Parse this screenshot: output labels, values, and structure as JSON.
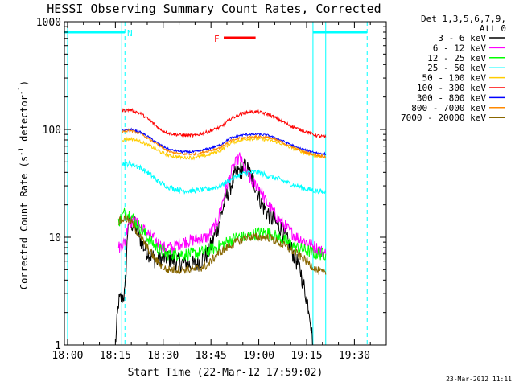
{
  "chart_data": {
    "type": "line",
    "title": "HESSI Observing Summary Count Rates, Corrected",
    "xlabel": "Start Time (22-Mar-12 17:59:02)",
    "ylabel": "Corrected Count Rate (s",
    "ylabel_sup1": "-1",
    "ylabel_mid": " detector",
    "ylabel_sup2": "-1",
    "ylabel_end": ")",
    "y_scale": "log",
    "ylim": [
      1,
      1000
    ],
    "xlim": [
      "17:59:00",
      "19:40:00"
    ],
    "x_ticks": [
      "18:00",
      "18:15",
      "18:30",
      "18:45",
      "19:00",
      "19:15",
      "19:30"
    ],
    "y_ticks": [
      "1",
      "10",
      "100",
      "1000"
    ],
    "legend": {
      "placement": "right",
      "header": [
        "Det 1,3,5,6,7,9,",
        "Att 0"
      ]
    },
    "annotations": {
      "night_label": "N",
      "flare_label": "F",
      "flare_span": [
        "18:49",
        "18:59"
      ],
      "timestamp": "23-Mar-2012 11:11"
    },
    "night_bars": [
      {
        "start": "17:59:00",
        "end": "18:18:00",
        "y": 800
      },
      {
        "start": "19:17:00",
        "end": "19:34:00",
        "y": 800
      }
    ],
    "night_lines": [
      {
        "time": "18:18:00",
        "style": "dashed"
      },
      {
        "time": "18:17:00",
        "style": "solid"
      },
      {
        "time": "19:17:00",
        "style": "solid"
      },
      {
        "time": "19:21:00",
        "style": "solid"
      },
      {
        "time": "19:34:00",
        "style": "dashed"
      },
      {
        "time": "18:00:00",
        "style": "solid"
      }
    ],
    "series": [
      {
        "name": "3 - 6 keV",
        "color": "#000000",
        "points": [
          [
            "18:15",
            1
          ],
          [
            "18:16",
            2.5
          ],
          [
            "18:18",
            3
          ],
          [
            "18:19",
            14
          ],
          [
            "18:21",
            13
          ],
          [
            "18:24",
            8
          ],
          [
            "18:28",
            6
          ],
          [
            "18:31",
            6.5
          ],
          [
            "18:34",
            6
          ],
          [
            "18:40",
            5.5
          ],
          [
            "18:44",
            7
          ],
          [
            "18:47",
            12
          ],
          [
            "18:50",
            25
          ],
          [
            "18:53",
            40
          ],
          [
            "18:56",
            45
          ],
          [
            "18:59",
            30
          ],
          [
            "19:01",
            20
          ],
          [
            "19:04",
            15
          ],
          [
            "19:07",
            12
          ],
          [
            "19:10",
            8
          ],
          [
            "19:13",
            5
          ],
          [
            "19:16",
            2
          ],
          [
            "19:17",
            1
          ]
        ]
      },
      {
        "name": "6 - 12 keV",
        "color": "#ff00ff",
        "points": [
          [
            "18:16",
            8
          ],
          [
            "18:18",
            9
          ],
          [
            "18:19",
            14
          ],
          [
            "18:21",
            14
          ],
          [
            "18:25",
            11
          ],
          [
            "18:30",
            8
          ],
          [
            "18:33",
            8
          ],
          [
            "18:36",
            9
          ],
          [
            "18:40",
            9.5
          ],
          [
            "18:44",
            10
          ],
          [
            "18:47",
            14
          ],
          [
            "18:50",
            30
          ],
          [
            "18:52",
            45
          ],
          [
            "18:54",
            55
          ],
          [
            "18:56",
            40
          ],
          [
            "18:58",
            32
          ],
          [
            "19:00",
            30
          ],
          [
            "19:02",
            22
          ],
          [
            "19:06",
            15
          ],
          [
            "19:09",
            12
          ],
          [
            "19:12",
            10
          ],
          [
            "19:15",
            9
          ],
          [
            "19:18",
            8
          ],
          [
            "19:21",
            7
          ]
        ]
      },
      {
        "name": "12 - 25 keV",
        "color": "#00ff00",
        "points": [
          [
            "18:16",
            14
          ],
          [
            "18:18",
            17
          ],
          [
            "18:20",
            16
          ],
          [
            "18:22",
            13
          ],
          [
            "18:25",
            10
          ],
          [
            "18:28",
            8
          ],
          [
            "18:31",
            7
          ],
          [
            "18:36",
            7
          ],
          [
            "18:40",
            7
          ],
          [
            "18:44",
            7.5
          ],
          [
            "18:47",
            8
          ],
          [
            "18:50",
            9
          ],
          [
            "18:53",
            10
          ],
          [
            "18:56",
            10
          ],
          [
            "19:00",
            11
          ],
          [
            "19:03",
            11
          ],
          [
            "19:06",
            10
          ],
          [
            "19:09",
            9
          ],
          [
            "19:12",
            8
          ],
          [
            "19:15",
            7.5
          ],
          [
            "19:18",
            7
          ],
          [
            "19:21",
            7
          ]
        ]
      },
      {
        "name": "25 - 50 keV",
        "color": "#00ffff",
        "points": [
          [
            "18:17",
            48
          ],
          [
            "18:20",
            48
          ],
          [
            "18:23",
            44
          ],
          [
            "18:26",
            38
          ],
          [
            "18:29",
            32
          ],
          [
            "18:32",
            29
          ],
          [
            "18:36",
            27
          ],
          [
            "18:40",
            27
          ],
          [
            "18:44",
            28
          ],
          [
            "18:48",
            30
          ],
          [
            "18:51",
            34
          ],
          [
            "18:54",
            38
          ],
          [
            "18:57",
            40
          ],
          [
            "19:00",
            40
          ],
          [
            "19:03",
            37
          ],
          [
            "19:06",
            35
          ],
          [
            "19:09",
            32
          ],
          [
            "19:12",
            30
          ],
          [
            "19:15",
            28
          ],
          [
            "19:18",
            27
          ],
          [
            "19:21",
            26
          ]
        ]
      },
      {
        "name": "50 - 100 keV",
        "color": "#ffcc00",
        "points": [
          [
            "18:17",
            80
          ],
          [
            "18:20",
            82
          ],
          [
            "18:23",
            77
          ],
          [
            "18:26",
            70
          ],
          [
            "18:29",
            62
          ],
          [
            "18:32",
            57
          ],
          [
            "18:36",
            55
          ],
          [
            "18:40",
            55
          ],
          [
            "18:44",
            58
          ],
          [
            "18:48",
            64
          ],
          [
            "18:51",
            74
          ],
          [
            "18:54",
            80
          ],
          [
            "18:57",
            82
          ],
          [
            "19:00",
            82
          ],
          [
            "19:03",
            80
          ],
          [
            "19:06",
            76
          ],
          [
            "19:09",
            70
          ],
          [
            "19:12",
            65
          ],
          [
            "19:15",
            60
          ],
          [
            "19:18",
            57
          ],
          [
            "19:21",
            55
          ]
        ]
      },
      {
        "name": "100 - 300 keV",
        "color": "#ff0000",
        "points": [
          [
            "18:17",
            150
          ],
          [
            "18:20",
            152
          ],
          [
            "18:23",
            140
          ],
          [
            "18:26",
            120
          ],
          [
            "18:29",
            100
          ],
          [
            "18:32",
            92
          ],
          [
            "18:36",
            88
          ],
          [
            "18:40",
            88
          ],
          [
            "18:44",
            95
          ],
          [
            "18:48",
            105
          ],
          [
            "18:51",
            125
          ],
          [
            "18:54",
            138
          ],
          [
            "18:57",
            145
          ],
          [
            "19:00",
            145
          ],
          [
            "19:03",
            138
          ],
          [
            "19:06",
            125
          ],
          [
            "19:09",
            112
          ],
          [
            "19:12",
            102
          ],
          [
            "19:15",
            95
          ],
          [
            "19:18",
            88
          ],
          [
            "19:21",
            85
          ]
        ]
      },
      {
        "name": "300 - 800 keV",
        "color": "#0000ff",
        "points": [
          [
            "18:17",
            98
          ],
          [
            "18:20",
            100
          ],
          [
            "18:23",
            94
          ],
          [
            "18:26",
            83
          ],
          [
            "18:29",
            72
          ],
          [
            "18:32",
            65
          ],
          [
            "18:36",
            62
          ],
          [
            "18:40",
            62
          ],
          [
            "18:44",
            66
          ],
          [
            "18:48",
            72
          ],
          [
            "18:51",
            83
          ],
          [
            "18:54",
            88
          ],
          [
            "18:57",
            90
          ],
          [
            "19:00",
            90
          ],
          [
            "19:03",
            88
          ],
          [
            "19:06",
            82
          ],
          [
            "19:09",
            75
          ],
          [
            "19:12",
            68
          ],
          [
            "19:15",
            64
          ],
          [
            "19:18",
            61
          ],
          [
            "19:21",
            59
          ]
        ]
      },
      {
        "name": "800 - 7000 keV",
        "color": "#ff8800",
        "points": [
          [
            "18:17",
            96
          ],
          [
            "18:20",
            97
          ],
          [
            "18:23",
            91
          ],
          [
            "18:26",
            80
          ],
          [
            "18:29",
            70
          ],
          [
            "18:32",
            62
          ],
          [
            "18:36",
            59
          ],
          [
            "18:40",
            59
          ],
          [
            "18:44",
            63
          ],
          [
            "18:48",
            68
          ],
          [
            "18:51",
            78
          ],
          [
            "18:54",
            83
          ],
          [
            "18:57",
            85
          ],
          [
            "19:00",
            86
          ],
          [
            "19:03",
            84
          ],
          [
            "19:06",
            79
          ],
          [
            "19:09",
            72
          ],
          [
            "19:12",
            66
          ],
          [
            "19:15",
            61
          ],
          [
            "19:18",
            58
          ],
          [
            "19:21",
            56
          ]
        ]
      },
      {
        "name": "7000 - 20000 keV",
        "color": "#886600",
        "points": [
          [
            "18:16",
            14
          ],
          [
            "18:18",
            15
          ],
          [
            "18:20",
            14
          ],
          [
            "18:22",
            11
          ],
          [
            "18:25",
            8
          ],
          [
            "18:28",
            6
          ],
          [
            "18:31",
            5
          ],
          [
            "18:36",
            5
          ],
          [
            "18:40",
            5
          ],
          [
            "18:44",
            5.5
          ],
          [
            "18:47",
            7
          ],
          [
            "18:50",
            8
          ],
          [
            "18:53",
            9
          ],
          [
            "18:56",
            10
          ],
          [
            "19:00",
            10
          ],
          [
            "19:03",
            10
          ],
          [
            "19:06",
            9
          ],
          [
            "19:09",
            8
          ],
          [
            "19:12",
            7
          ],
          [
            "19:15",
            6
          ],
          [
            "19:18",
            5
          ],
          [
            "19:21",
            4.5
          ]
        ]
      }
    ]
  }
}
